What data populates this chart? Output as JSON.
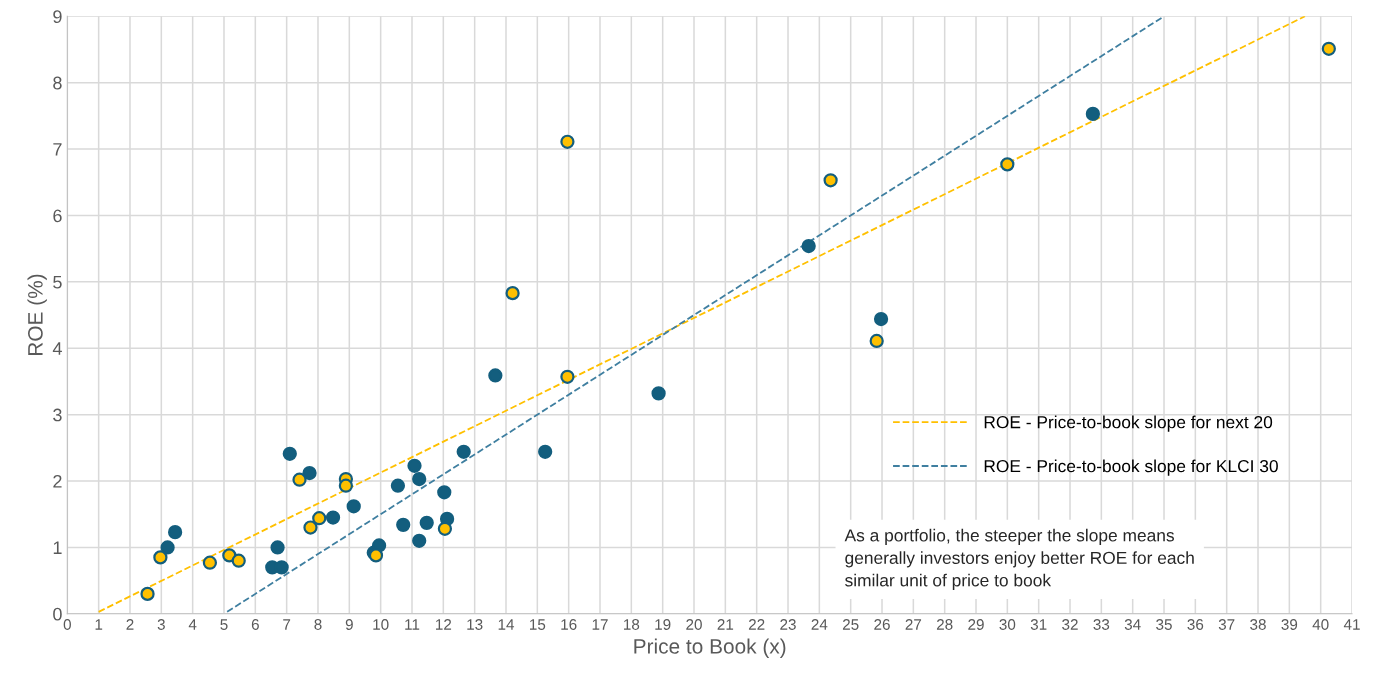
{
  "chart_data": {
    "type": "scatter",
    "xlabel": "Price to Book (x)",
    "ylabel": "ROE (%)",
    "xlim": [
      0,
      41
    ],
    "ylim": [
      0,
      9
    ],
    "xticks": [
      0,
      1,
      2,
      3,
      4,
      5,
      6,
      7,
      8,
      9,
      10,
      11,
      12,
      13,
      14,
      15,
      16,
      17,
      18,
      19,
      20,
      21,
      22,
      23,
      24,
      25,
      26,
      27,
      28,
      29,
      30,
      31,
      32,
      33,
      34,
      35,
      36,
      37,
      38,
      39,
      40,
      41
    ],
    "yticks": [
      0,
      1,
      2,
      3,
      4,
      5,
      6,
      7,
      8,
      9
    ],
    "grid": true,
    "legend": "bottom right",
    "marker": "circle",
    "series": [
      {
        "color": "#ffc000",
        "x": [
          2.56,
          2.97,
          4.55,
          5.17,
          5.47,
          7.41,
          7.76,
          8.04,
          8.89,
          8.89,
          9.85,
          12.05,
          14.21,
          15.96,
          15.96,
          24.36,
          25.83,
          30.0,
          40.26
        ],
        "values": [
          0.3,
          0.85,
          0.77,
          0.88,
          0.8,
          2.02,
          1.3,
          1.44,
          2.03,
          1.93,
          0.88,
          1.28,
          4.83,
          7.11,
          3.57,
          6.53,
          4.11,
          6.77,
          8.51
        ]
      },
      {
        "color": "#135e7e",
        "x": [
          3.2,
          3.44,
          6.54,
          6.71,
          6.84,
          7.1,
          7.73,
          8.48,
          9.14,
          9.78,
          9.95,
          10.55,
          10.72,
          11.08,
          11.23,
          11.23,
          11.47,
          12.03,
          12.12,
          12.65,
          13.66,
          15.25,
          18.87,
          23.66,
          25.97,
          32.73
        ],
        "values": [
          1.0,
          1.23,
          0.7,
          1.0,
          0.7,
          2.41,
          2.12,
          1.45,
          1.62,
          0.92,
          1.03,
          1.93,
          1.34,
          2.23,
          2.03,
          1.1,
          1.37,
          1.83,
          1.43,
          2.44,
          3.59,
          2.44,
          3.32,
          5.54,
          4.44,
          7.53
        ]
      },
      {
        "type": "line",
        "name": "ROE - Price-to-book slope for next 20",
        "color": "#ffc000",
        "line_style": "dashed",
        "marker": "none",
        "x": [
          1.0,
          39.5
        ],
        "values": [
          0.03,
          9.0
        ]
      },
      {
        "type": "line",
        "name": "ROE - Price-to-book slope for KLCI 30",
        "color": "#3f7fa0",
        "line_style": "dashed",
        "marker": "none",
        "x": [
          5.1,
          35.0
        ],
        "values": [
          0.03,
          9.0
        ]
      }
    ],
    "annotations": [
      "As a portfolio, the steeper the slope means\ngenerally investors enjoy better ROE for each\nsimilar unit of price to book"
    ]
  }
}
